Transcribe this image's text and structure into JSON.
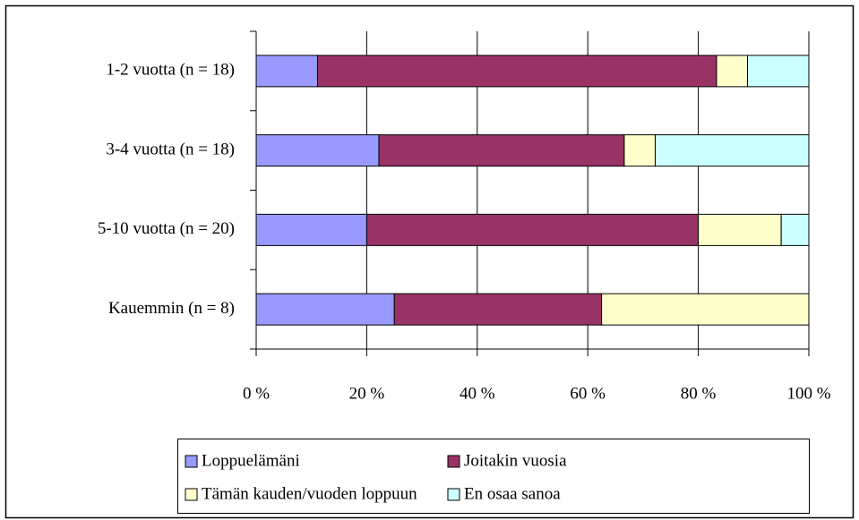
{
  "chart_data": {
    "type": "stacked_barh",
    "categories": [
      "1-2 vuotta (n = 18)",
      "3-4 vuotta (n = 18)",
      "5-10 vuotta (n = 20)",
      "Kauemmin (n = 8)"
    ],
    "series": [
      {
        "name": "Loppuelämäni",
        "color": "#9999ff",
        "values": [
          11.1,
          22.2,
          20,
          25
        ]
      },
      {
        "name": "Joitakin vuosia",
        "color": "#993366",
        "values": [
          72.2,
          44.4,
          60,
          37.5
        ]
      },
      {
        "name": "Tämän kauden/vuoden loppuun",
        "color": "#ffffcc",
        "values": [
          5.6,
          5.6,
          15,
          37.5
        ]
      },
      {
        "name": "En osaa sanoa",
        "color": "#ccffff",
        "values": [
          11.1,
          27.8,
          5,
          0
        ]
      }
    ],
    "xlim": [
      0,
      100
    ],
    "xticks": [
      {
        "value": 0,
        "label": "0 %"
      },
      {
        "value": 20,
        "label": "20 %"
      },
      {
        "value": 40,
        "label": "40 %"
      },
      {
        "value": 60,
        "label": "60 %"
      },
      {
        "value": 80,
        "label": "80 %"
      },
      {
        "value": 100,
        "label": "100 %"
      }
    ],
    "grid": true
  }
}
